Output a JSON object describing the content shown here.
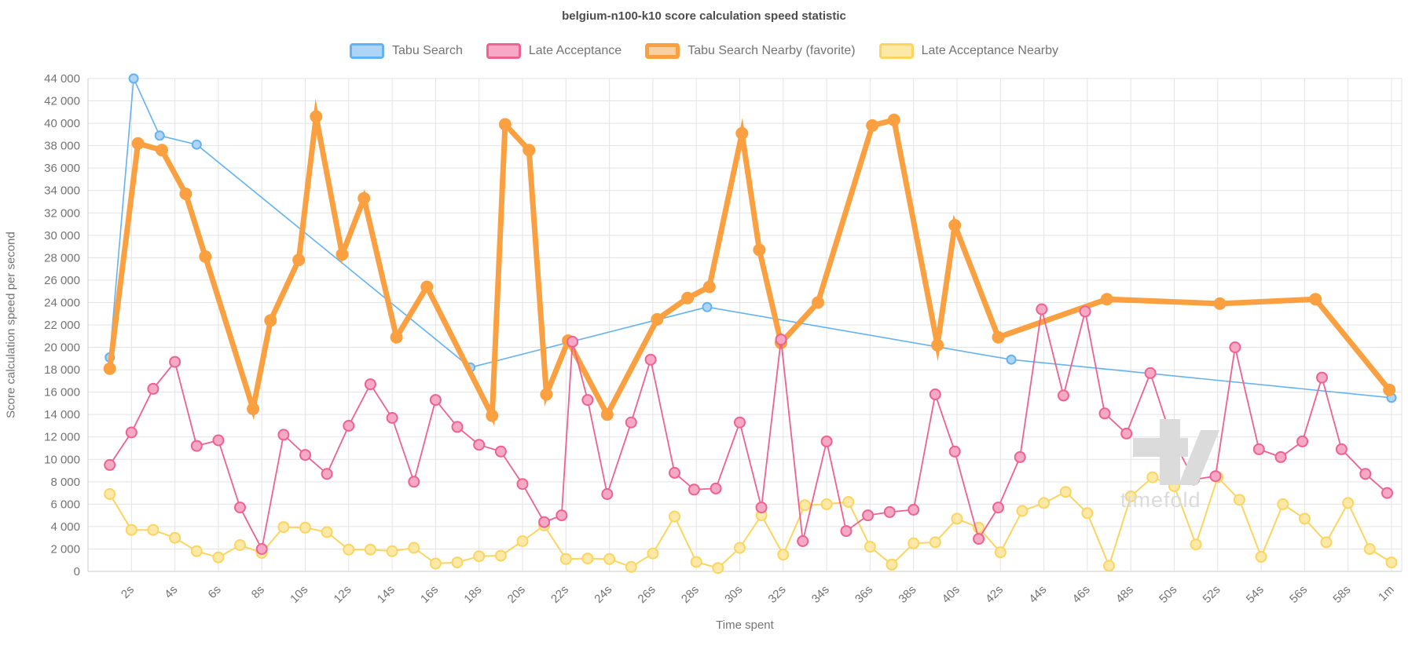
{
  "title": "belgium-n100-k10 score calculation speed statistic",
  "axes": {
    "y_title": "Score calculation speed per second",
    "x_title": "Time spent",
    "y_tick_labels": [
      "0",
      "2 000",
      "4 000",
      "6 000",
      "8 000",
      "10 000",
      "12 000",
      "14 000",
      "16 000",
      "18 000",
      "20 000",
      "22 000",
      "24 000",
      "26 000",
      "28 000",
      "30 000",
      "32 000",
      "34 000",
      "36 000",
      "38 000",
      "40 000",
      "42 000",
      "44 000"
    ],
    "x_tick_labels": [
      "2s",
      "4s",
      "6s",
      "8s",
      "10s",
      "12s",
      "14s",
      "16s",
      "18s",
      "20s",
      "22s",
      "24s",
      "26s",
      "28s",
      "30s",
      "32s",
      "34s",
      "36s",
      "38s",
      "40s",
      "42s",
      "44s",
      "46s",
      "48s",
      "50s",
      "52s",
      "54s",
      "56s",
      "58s",
      "1m"
    ],
    "grid_color": "#e3e3e3",
    "border_color": "#cccccc",
    "tick_text_color": "#737373"
  },
  "watermark": {
    "text": "timefold"
  },
  "chart_data": {
    "type": "line",
    "title": "belgium-n100-k10 score calculation speed statistic",
    "xlabel": "Time spent",
    "ylabel": "Score calculation speed per second",
    "x_unit": "seconds",
    "xlim": [
      0,
      60.5
    ],
    "ylim": [
      0,
      44000
    ],
    "y_tick_step": 2000,
    "x_tick_step_seconds": 2,
    "grid": true,
    "legend_position": "top",
    "series": [
      {
        "name": "Tabu Search",
        "color": "#64b2f0",
        "marker_fill": "#aed5f6",
        "line_width": 1.6,
        "marker_radius": 5.5,
        "marker_stroke_width": 2,
        "points": [
          [
            1,
            19100
          ],
          [
            2.1,
            44000
          ],
          [
            3.3,
            38900
          ],
          [
            5,
            38100
          ],
          [
            17.6,
            18200
          ],
          [
            28.5,
            23600
          ],
          [
            42.5,
            18900
          ],
          [
            60,
            15500
          ]
        ]
      },
      {
        "name": "Late Acceptance",
        "color": "#ee6191",
        "marker_fill": "#f6a9c4",
        "line_width": 1.8,
        "marker_radius": 6.5,
        "marker_stroke_width": 2,
        "points": [
          [
            1,
            9500
          ],
          [
            2,
            12400
          ],
          [
            3,
            16300
          ],
          [
            4,
            18700
          ],
          [
            5,
            11200
          ],
          [
            6,
            11700
          ],
          [
            7,
            5700
          ],
          [
            8,
            2000
          ],
          [
            9,
            12200
          ],
          [
            10,
            10400
          ],
          [
            11,
            8700
          ],
          [
            12,
            13000
          ],
          [
            13,
            16700
          ],
          [
            14,
            13700
          ],
          [
            15,
            8000
          ],
          [
            16,
            15300
          ],
          [
            17,
            12900
          ],
          [
            18,
            11300
          ],
          [
            19,
            10700
          ],
          [
            20,
            7800
          ],
          [
            21,
            4400
          ],
          [
            21.8,
            5000
          ],
          [
            22.3,
            20500
          ],
          [
            23,
            15300
          ],
          [
            23.9,
            6900
          ],
          [
            25,
            13300
          ],
          [
            25.9,
            18900
          ],
          [
            27,
            8800
          ],
          [
            27.9,
            7300
          ],
          [
            28.9,
            7400
          ],
          [
            30,
            13300
          ],
          [
            31,
            5700
          ],
          [
            31.9,
            20700
          ],
          [
            32.9,
            2700
          ],
          [
            34,
            11600
          ],
          [
            34.9,
            3600
          ],
          [
            35.9,
            5000
          ],
          [
            36.9,
            5300
          ],
          [
            38,
            5500
          ],
          [
            39,
            15800
          ],
          [
            39.9,
            10700
          ],
          [
            41,
            2900
          ],
          [
            41.9,
            5700
          ],
          [
            42.9,
            10200
          ],
          [
            43.9,
            23400
          ],
          [
            44.9,
            15700
          ],
          [
            45.9,
            23200
          ],
          [
            46.8,
            14100
          ],
          [
            47.8,
            12300
          ],
          [
            48.9,
            17700
          ],
          [
            49.8,
            12300
          ],
          [
            50.9,
            8200
          ],
          [
            51.9,
            8500
          ],
          [
            52.8,
            20000
          ],
          [
            53.9,
            10900
          ],
          [
            54.9,
            10200
          ],
          [
            55.9,
            11600
          ],
          [
            56.8,
            17300
          ],
          [
            57.7,
            10900
          ],
          [
            58.8,
            8700
          ],
          [
            59.8,
            7000
          ]
        ]
      },
      {
        "name": "Tabu Search Nearby (favorite)",
        "color": "#faa041",
        "marker_fill": "#faa041",
        "line_width": 7,
        "marker_radius": 8,
        "marker_stroke_width": 0,
        "favorite": true,
        "points": [
          [
            1,
            18100
          ],
          [
            2.3,
            38200
          ],
          [
            3.4,
            37600
          ],
          [
            4.5,
            33700
          ],
          [
            5.4,
            28100
          ],
          [
            7.6,
            14500
          ],
          [
            8.4,
            22400
          ],
          [
            9.7,
            27800
          ],
          [
            10.5,
            40600
          ],
          [
            11.7,
            28300
          ],
          [
            12.7,
            33300
          ],
          [
            14.2,
            20900
          ],
          [
            15.6,
            25400
          ],
          [
            18.6,
            13900
          ],
          [
            19.2,
            39900
          ],
          [
            20.3,
            37600
          ],
          [
            21.1,
            15800
          ],
          [
            22.1,
            20600
          ],
          [
            23.9,
            14000
          ],
          [
            26.2,
            22500
          ],
          [
            27.6,
            24400
          ],
          [
            28.6,
            25400
          ],
          [
            30.1,
            39100
          ],
          [
            30.9,
            28700
          ],
          [
            31.9,
            20400
          ],
          [
            33.6,
            24000
          ],
          [
            36.1,
            39800
          ],
          [
            37.1,
            40300
          ],
          [
            39.1,
            20200
          ],
          [
            39.9,
            30900
          ],
          [
            41.9,
            20900
          ],
          [
            46.9,
            24300
          ],
          [
            52.1,
            23900
          ],
          [
            56.5,
            24300
          ],
          [
            59.9,
            16200
          ]
        ]
      },
      {
        "name": "Late Acceptance Nearby",
        "color": "#fbd55f",
        "marker_fill": "#fce9a8",
        "line_width": 2,
        "marker_radius": 6.5,
        "marker_stroke_width": 2,
        "points": [
          [
            1,
            6900
          ],
          [
            2,
            3700
          ],
          [
            3,
            3700
          ],
          [
            4,
            3000
          ],
          [
            5,
            1800
          ],
          [
            6,
            1250
          ],
          [
            7,
            2350
          ],
          [
            8,
            1650
          ],
          [
            9,
            3950
          ],
          [
            10,
            3900
          ],
          [
            11,
            3500
          ],
          [
            12,
            1950
          ],
          [
            13,
            1950
          ],
          [
            14,
            1800
          ],
          [
            15,
            2100
          ],
          [
            16,
            700
          ],
          [
            17,
            800
          ],
          [
            18,
            1350
          ],
          [
            19,
            1400
          ],
          [
            20,
            2700
          ],
          [
            21,
            4100
          ],
          [
            22,
            1100
          ],
          [
            23,
            1150
          ],
          [
            24,
            1100
          ],
          [
            25,
            400
          ],
          [
            26,
            1600
          ],
          [
            27,
            4900
          ],
          [
            28,
            840
          ],
          [
            29,
            300
          ],
          [
            30,
            2100
          ],
          [
            31,
            5000
          ],
          [
            32,
            1500
          ],
          [
            33,
            5900
          ],
          [
            34,
            6000
          ],
          [
            35,
            6200
          ],
          [
            36,
            2200
          ],
          [
            37,
            600
          ],
          [
            38,
            2500
          ],
          [
            39,
            2600
          ],
          [
            40,
            4700
          ],
          [
            41,
            3900
          ],
          [
            42,
            1700
          ],
          [
            43,
            5400
          ],
          [
            44,
            6100
          ],
          [
            45,
            7100
          ],
          [
            46,
            5200
          ],
          [
            47,
            500
          ],
          [
            48,
            6700
          ],
          [
            49,
            8400
          ],
          [
            50,
            7600
          ],
          [
            51,
            2400
          ],
          [
            52,
            8400
          ],
          [
            53,
            6400
          ],
          [
            54,
            1300
          ],
          [
            55,
            6000
          ],
          [
            56,
            4700
          ],
          [
            57,
            2600
          ],
          [
            58,
            6100
          ],
          [
            59,
            2000
          ],
          [
            60,
            800
          ]
        ]
      }
    ]
  }
}
